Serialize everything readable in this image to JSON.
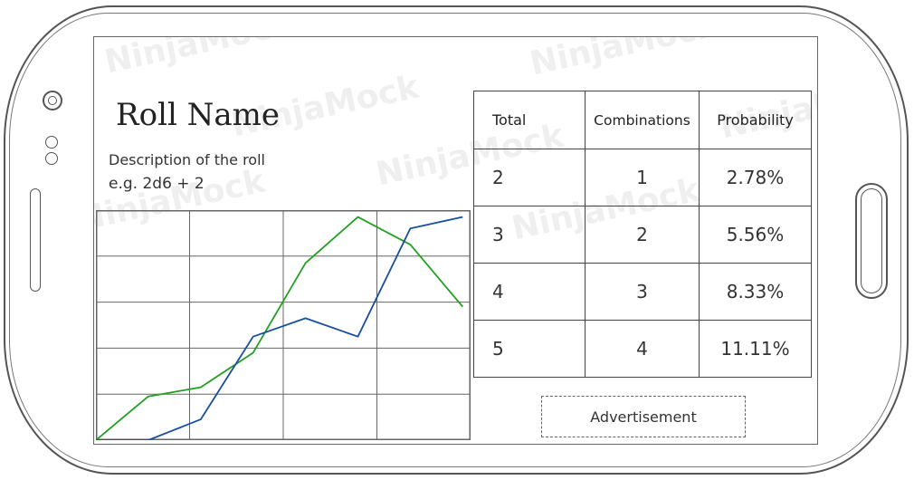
{
  "watermark": "NinjaMock",
  "roll": {
    "title": "Roll Name",
    "description": "Description of the roll",
    "example": "e.g. 2d6 + 2"
  },
  "table": {
    "headers": [
      "Total",
      "Combinations",
      "Probability"
    ],
    "rows": [
      {
        "total": "2",
        "combinations": "1",
        "probability": "2.78%"
      },
      {
        "total": "3",
        "combinations": "2",
        "probability": "5.56%"
      },
      {
        "total": "4",
        "combinations": "3",
        "probability": "8.33%"
      },
      {
        "total": "5",
        "combinations": "4",
        "probability": "11.11%"
      }
    ]
  },
  "advertisement": "Advertisement",
  "colors": {
    "series_green": "#22a022",
    "series_blue": "#1a4fa0",
    "grid": "#666666"
  },
  "chart_data": {
    "type": "line",
    "x": [
      0,
      1,
      2,
      3,
      4,
      5,
      6,
      7
    ],
    "xlim": [
      0,
      7.15
    ],
    "ylim": [
      0,
      5
    ],
    "grid": true,
    "series": [
      {
        "name": "green",
        "values": [
          0.0,
          0.95,
          1.15,
          1.9,
          3.85,
          4.85,
          4.25,
          2.9
        ]
      },
      {
        "name": "blue",
        "values": [
          0.0,
          0.0,
          0.45,
          2.25,
          2.65,
          2.25,
          4.6,
          4.85
        ]
      }
    ]
  }
}
